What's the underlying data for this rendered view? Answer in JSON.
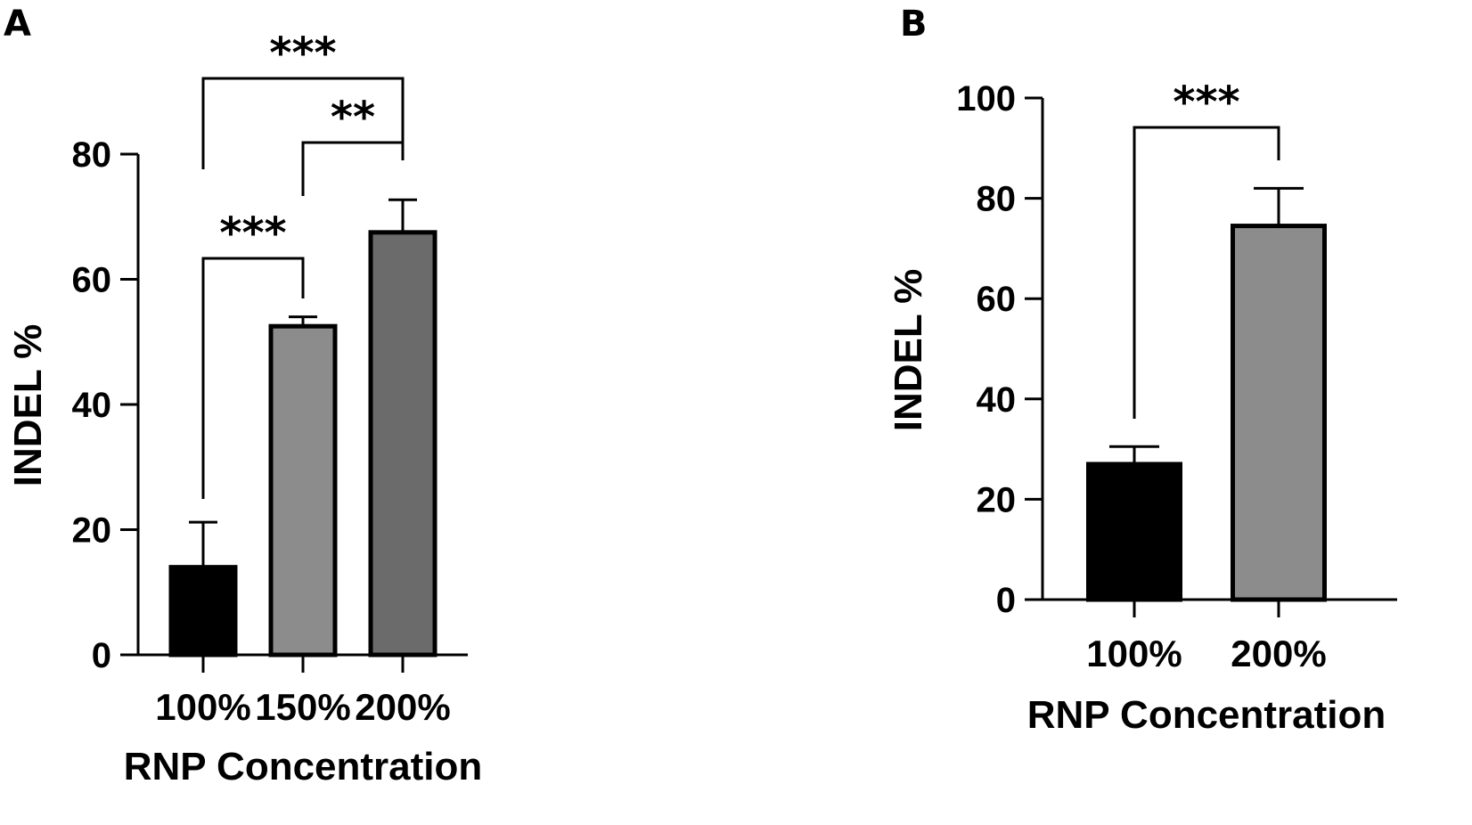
{
  "panels": [
    {
      "letter": "A",
      "chart_data": {
        "type": "bar",
        "categories": [
          "100%",
          "150%",
          "200%"
        ],
        "values": [
          14,
          52.5,
          67.5
        ],
        "errors": [
          7.2,
          1.5,
          5.2
        ],
        "bar_colors": [
          "#000000",
          "#8c8c8c",
          "#6b6b6b"
        ],
        "xlabel": "RNP Concentration",
        "ylabel": "INDEL %",
        "ylim": [
          0,
          80
        ],
        "yticks": [
          0,
          20,
          40,
          60,
          80
        ],
        "grid": false,
        "significance": [
          {
            "from": 0,
            "to": 1,
            "label": "***"
          },
          {
            "from": 1,
            "to": 2,
            "label": "**"
          },
          {
            "from": 0,
            "to": 2,
            "label": "***"
          }
        ]
      }
    },
    {
      "letter": "B",
      "chart_data": {
        "type": "bar",
        "categories": [
          "100%",
          "200%"
        ],
        "values": [
          27,
          74.5
        ],
        "errors": [
          3.5,
          7.5
        ],
        "bar_colors": [
          "#000000",
          "#8c8c8c"
        ],
        "xlabel": "RNP Concentration",
        "ylabel": "INDEL %",
        "ylim": [
          0,
          100
        ],
        "yticks": [
          0,
          20,
          40,
          60,
          80,
          100
        ],
        "grid": false,
        "significance": [
          {
            "from": 0,
            "to": 1,
            "label": "***"
          }
        ]
      }
    }
  ]
}
